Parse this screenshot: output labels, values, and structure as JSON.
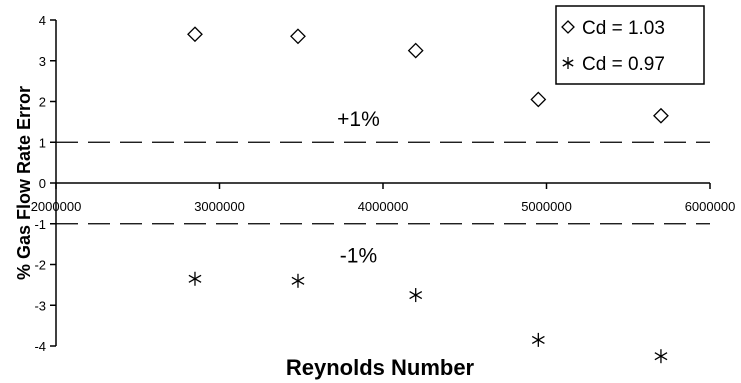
{
  "chart_data": {
    "type": "scatter",
    "xlabel": "Reynolds Number",
    "ylabel": "% Gas Flow Rate Error",
    "xlim": [
      2000000,
      6000000
    ],
    "ylim": [
      -4,
      4
    ],
    "x_ticks": [
      2000000,
      3000000,
      4000000,
      5000000,
      6000000
    ],
    "x_tick_labels": [
      "2000000",
      "3000000",
      "4000000",
      "5000000",
      "6000000"
    ],
    "y_ticks": [
      4,
      3,
      2,
      1,
      0,
      -1,
      -2,
      -3,
      -4
    ],
    "y_tick_labels": [
      "4",
      "3",
      "2",
      "1",
      "0",
      "-1",
      "-2",
      "-3",
      "-4"
    ],
    "grid": false,
    "legend_position": "top-right",
    "series": [
      {
        "name": "Cd = 1.03",
        "marker": "diamond",
        "x": [
          2850000,
          3480000,
          4200000,
          4950000,
          5700000
        ],
        "y": [
          3.65,
          3.6,
          3.25,
          2.05,
          1.65
        ]
      },
      {
        "name": "Cd = 0.97",
        "marker": "asterisk",
        "x": [
          2850000,
          3480000,
          4200000,
          4950000,
          5700000
        ],
        "y": [
          -2.35,
          -2.4,
          -2.75,
          -3.85,
          -4.25
        ]
      }
    ],
    "reference_lines": [
      {
        "y": 1,
        "label": "+1%",
        "label_x": 3850000,
        "label_y": 1.6,
        "style": "dashed"
      },
      {
        "y": -1,
        "label": "-1%",
        "label_x": 3850000,
        "label_y": -1.75,
        "style": "dashed"
      }
    ]
  }
}
